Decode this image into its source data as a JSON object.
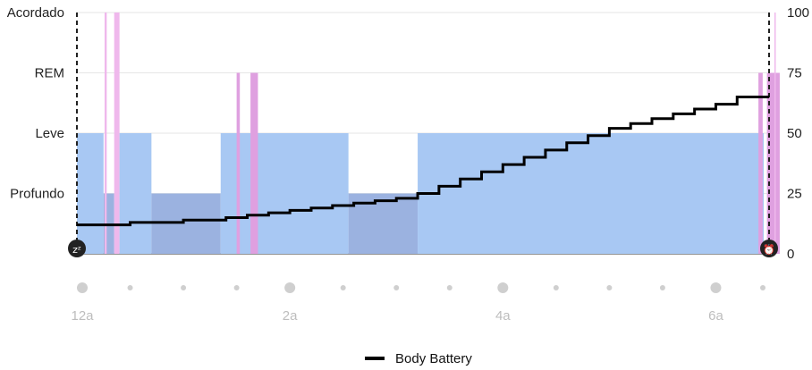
{
  "chart_data": {
    "type": "area",
    "left_axis": {
      "levels": [
        "Acordado",
        "REM",
        "Leve",
        "Profundo"
      ]
    },
    "right_axis": {
      "ticks": [
        100,
        75,
        50,
        25,
        0
      ],
      "ylim": [
        0,
        100
      ]
    },
    "x_axis": {
      "labels": [
        "12a",
        "2a",
        "4a",
        "6a"
      ],
      "range_hours": [
        0,
        6.5
      ]
    },
    "sleep_stages": [
      {
        "stage": "Leve",
        "start": 0.0,
        "end": 0.25
      },
      {
        "stage": "Profundo",
        "start": 0.25,
        "end": 0.35
      },
      {
        "stage": "Acordado",
        "start": 0.26,
        "end": 0.28
      },
      {
        "stage": "Acordado",
        "start": 0.35,
        "end": 0.4
      },
      {
        "stage": "Leve",
        "start": 0.4,
        "end": 0.7
      },
      {
        "stage": "Profundo",
        "start": 0.7,
        "end": 1.35
      },
      {
        "stage": "Leve",
        "start": 1.35,
        "end": 2.55
      },
      {
        "stage": "REM",
        "start": 1.5,
        "end": 1.53
      },
      {
        "stage": "REM",
        "start": 1.63,
        "end": 1.7
      },
      {
        "stage": "Profundo",
        "start": 2.55,
        "end": 3.2
      },
      {
        "stage": "Leve",
        "start": 3.2,
        "end": 6.45
      },
      {
        "stage": "REM",
        "start": 6.4,
        "end": 6.44
      },
      {
        "stage": "REM",
        "start": 6.48,
        "end": 6.6
      },
      {
        "stage": "Acordado",
        "start": 6.55,
        "end": 6.56
      }
    ],
    "series": [
      {
        "name": "Body Battery",
        "x": [
          0,
          0.5,
          0.5,
          1.0,
          1.0,
          1.4,
          1.4,
          1.6,
          1.6,
          1.8,
          1.8,
          2.0,
          2.0,
          2.2,
          2.2,
          2.4,
          2.4,
          2.6,
          2.6,
          2.8,
          2.8,
          3.0,
          3.2,
          3.4,
          3.6,
          3.8,
          4.0,
          4.2,
          4.4,
          4.6,
          4.8,
          5.0,
          5.2,
          5.4,
          5.6,
          5.8,
          6.0,
          6.2,
          6.3,
          6.5
        ],
        "y": [
          12,
          12,
          13,
          13,
          14,
          14,
          15,
          15,
          16,
          16,
          17,
          17,
          18,
          18,
          19,
          19,
          20,
          20,
          21,
          21,
          22,
          23,
          25,
          28,
          31,
          34,
          37,
          40,
          43,
          46,
          49,
          52,
          54,
          56,
          58,
          60,
          62,
          65,
          65,
          65
        ]
      }
    ],
    "markers": [
      {
        "name": "sleep-start",
        "glyph": "zᶻ"
      },
      {
        "name": "wake-up",
        "glyph": "⏰"
      }
    ],
    "legend": "bottom-center"
  },
  "legend": {
    "label": "Body Battery"
  },
  "colors": {
    "light": "#a8c8f3",
    "deep": "#9bb2e0",
    "rem": "#dfa0e0",
    "awake": "#efb8ec",
    "line": "#000000",
    "grid": "#e6e6e6"
  }
}
